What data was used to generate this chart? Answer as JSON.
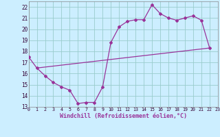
{
  "curve_x": [
    0,
    1,
    2,
    3,
    4,
    5,
    6,
    7,
    8,
    9,
    10,
    11,
    12,
    13,
    14,
    15,
    16,
    17,
    18,
    19,
    20,
    21,
    22
  ],
  "curve_y": [
    17.5,
    16.5,
    15.8,
    15.2,
    14.8,
    14.5,
    13.3,
    13.4,
    13.4,
    14.8,
    18.8,
    20.2,
    20.7,
    20.85,
    20.85,
    22.2,
    21.4,
    21.0,
    20.8,
    21.0,
    21.2,
    20.8,
    18.3
  ],
  "line_x": [
    1,
    22
  ],
  "line_y": [
    16.5,
    18.3
  ],
  "line_color": "#993399",
  "bg_color": "#cceeff",
  "grid_color": "#99cccc",
  "xlabel": "Windchill (Refroidissement éolien,°C)",
  "xlim": [
    0,
    23
  ],
  "ylim": [
    13,
    22.5
  ],
  "yticks": [
    13,
    14,
    15,
    16,
    17,
    18,
    19,
    20,
    21,
    22
  ],
  "xticks": [
    0,
    1,
    2,
    3,
    4,
    5,
    6,
    7,
    8,
    9,
    10,
    11,
    12,
    13,
    14,
    15,
    16,
    17,
    18,
    19,
    20,
    21,
    22,
    23
  ],
  "xtick_labels": [
    "0",
    "1",
    "2",
    "3",
    "4",
    "5",
    "6",
    "7",
    "8",
    "9",
    "10",
    "11",
    "12",
    "13",
    "14",
    "15",
    "16",
    "17",
    "18",
    "19",
    "20",
    "21",
    "22",
    "23"
  ]
}
